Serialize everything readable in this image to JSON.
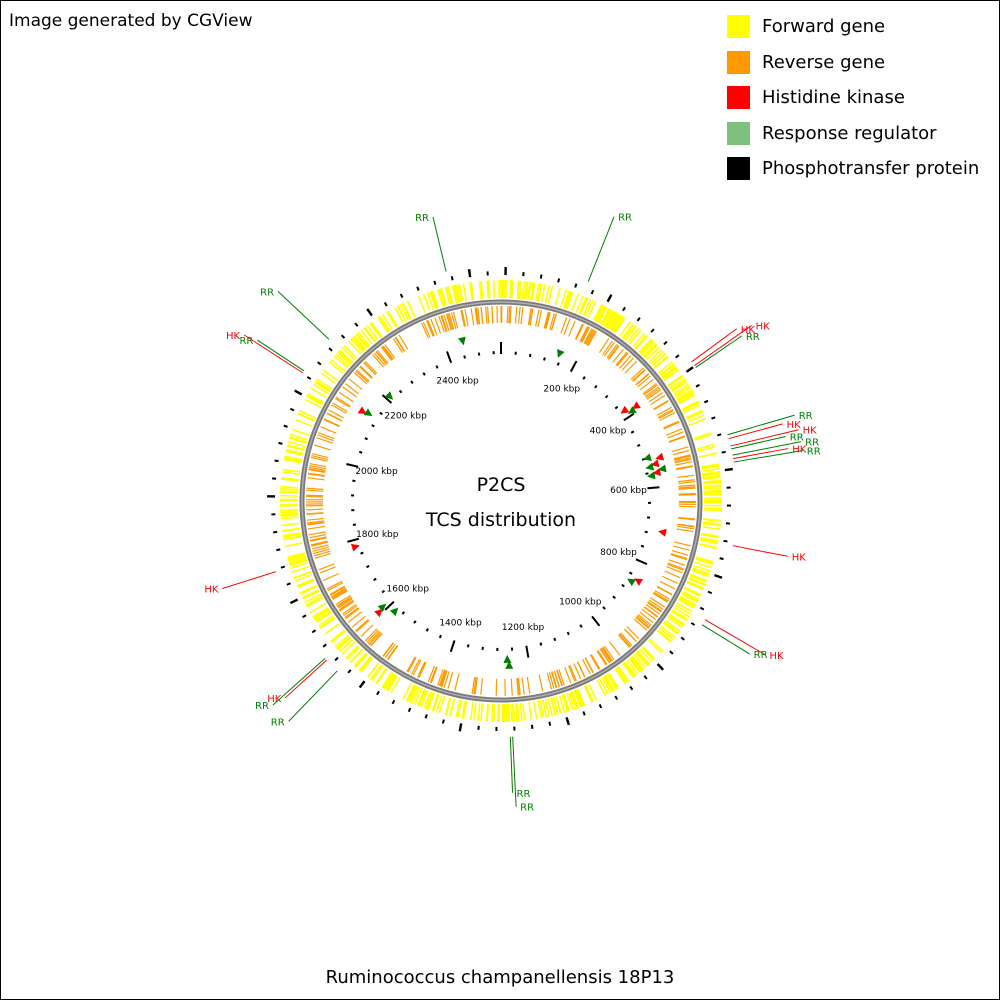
{
  "header": {
    "credit": "Image generated by CGView"
  },
  "legend": [
    {
      "label": "Forward gene",
      "color": "#ffff00"
    },
    {
      "label": "Reverse gene",
      "color": "#ff9900"
    },
    {
      "label": "Histidine kinase",
      "color": "#ff0000"
    },
    {
      "label": "Response regulator",
      "color": "#7fbf7f"
    },
    {
      "label": "Phosphotransfer protein",
      "color": "#000000"
    }
  ],
  "center": {
    "line1": "P2CS",
    "line2": "TCS distribution"
  },
  "organism": "Ruminococcus champanellensis 18P13",
  "genome": {
    "length_kbp": 2540,
    "tick_labels": [
      "200 kbp",
      "400 kbp",
      "600 kbp",
      "800 kbp",
      "1000 kbp",
      "1200 kbp",
      "1400 kbp",
      "1600 kbp",
      "1800 kbp",
      "2000 kbp",
      "2200 kbp",
      "2400 kbp"
    ],
    "tick_values_kbp": [
      200,
      400,
      600,
      800,
      1000,
      1200,
      1400,
      1600,
      1800,
      2000,
      2200,
      2400
    ]
  },
  "features": [
    {
      "type": "RR",
      "position_kbp": 2445,
      "label": "RR"
    },
    {
      "type": "RR",
      "position_kbp": 153,
      "label": "RR"
    },
    {
      "type": "HK",
      "position_kbp": 380,
      "label": "HK"
    },
    {
      "type": "HK",
      "position_kbp": 388,
      "label": "HK"
    },
    {
      "type": "RR",
      "position_kbp": 392,
      "label": "RR"
    },
    {
      "type": "RR",
      "position_kbp": 520,
      "label": "RR"
    },
    {
      "type": "HK",
      "position_kbp": 527,
      "label": "HK"
    },
    {
      "type": "HK",
      "position_kbp": 540,
      "label": "HK"
    },
    {
      "type": "RR",
      "position_kbp": 545,
      "label": "RR"
    },
    {
      "type": "RR",
      "position_kbp": 556,
      "label": "RR"
    },
    {
      "type": "HK",
      "position_kbp": 562,
      "label": "HK"
    },
    {
      "type": "RR",
      "position_kbp": 568,
      "label": "RR"
    },
    {
      "type": "HK",
      "position_kbp": 712,
      "label": "HK"
    },
    {
      "type": "HK",
      "position_kbp": 848,
      "label": "HK"
    },
    {
      "type": "RR",
      "position_kbp": 858,
      "label": "RR"
    },
    {
      "type": "RR",
      "position_kbp": 1250,
      "label": "RR"
    },
    {
      "type": "RR",
      "position_kbp": 1254,
      "label": "RR"
    },
    {
      "type": "RR",
      "position_kbp": 1580,
      "label": "RR"
    },
    {
      "type": "HK",
      "position_kbp": 1606,
      "label": "HK"
    },
    {
      "type": "RR",
      "position_kbp": 1610,
      "label": "RR"
    },
    {
      "type": "HK",
      "position_kbp": 1782,
      "label": "HK"
    },
    {
      "type": "HK",
      "position_kbp": 2137,
      "label": "HK"
    },
    {
      "type": "RR",
      "position_kbp": 2141,
      "label": "RR"
    },
    {
      "type": "RR",
      "position_kbp": 2210,
      "label": "RR"
    }
  ]
}
